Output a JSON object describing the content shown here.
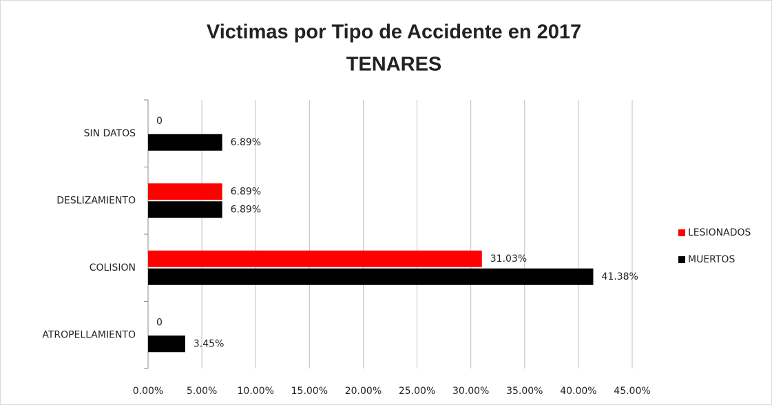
{
  "chart_data": {
    "type": "barh",
    "title": "Victimas por Tipo de Accidente en 2017",
    "subtitle": "TENARES",
    "categories": [
      "ATROPELLAMIENTO",
      "COLISION",
      "DESLIZAMIENTO",
      "SIN DATOS"
    ],
    "series": [
      {
        "name": "LESIONADOS",
        "color": "#ff0000",
        "values": [
          0,
          31.03,
          6.89,
          0
        ],
        "value_labels": [
          "0",
          "31.03%",
          "6.89%",
          "0"
        ]
      },
      {
        "name": "MUERTOS",
        "color": "#000000",
        "values": [
          3.45,
          41.38,
          6.89,
          6.89
        ],
        "value_labels": [
          "3.45%",
          "41.38%",
          "6.89%",
          "6.89%"
        ]
      }
    ],
    "xlim": [
      0,
      45
    ],
    "xticks": [
      {
        "value": 0,
        "label": "0.00%"
      },
      {
        "value": 5,
        "label": "5.00%"
      },
      {
        "value": 10,
        "label": "10.00%"
      },
      {
        "value": 15,
        "label": "15.00%"
      },
      {
        "value": 20,
        "label": "20.00%"
      },
      {
        "value": 25,
        "label": "25.00%"
      },
      {
        "value": 30,
        "label": "30.00%"
      },
      {
        "value": 35,
        "label": "35.00%"
      },
      {
        "value": 40,
        "label": "40.00%"
      },
      {
        "value": 45,
        "label": "45.00%"
      }
    ],
    "grid": true,
    "legend": "right"
  }
}
